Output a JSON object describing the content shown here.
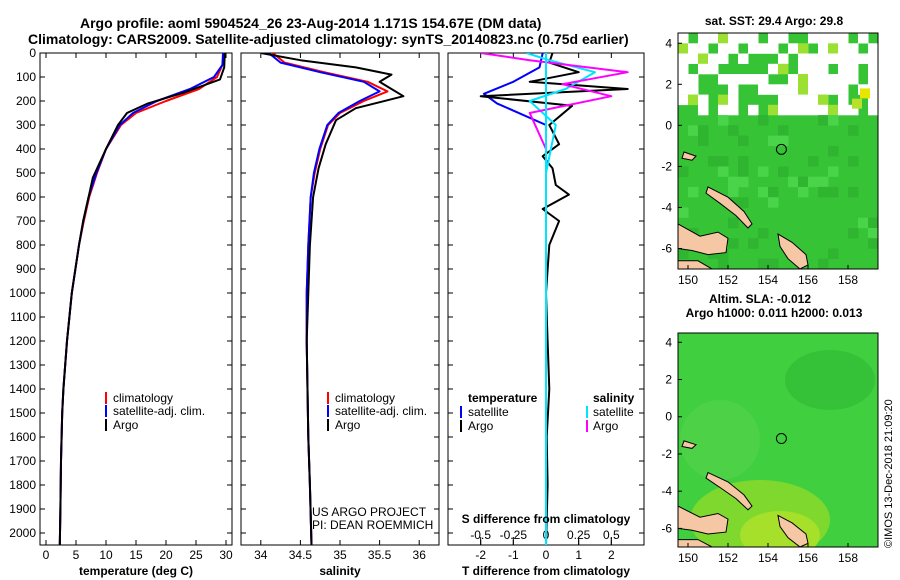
{
  "title_line1": "Argo profile: aoml 5904524_26 23-Aug-2014 1.171S 154.67E (DM data)",
  "title_line2": "Climatology: CARS2009. Satellite-adjusted climatology: synTS_20140823.nc (0.75d earlier)",
  "credit_line1": "US ARGO PROJECT",
  "credit_line2": "PI: DEAN ROEMMICH",
  "watermark": "©IMOS 13-Dec-2018 21:09:20",
  "colors": {
    "climatology": "#ff0000",
    "satellite": "#0000ff",
    "argo": "#000000",
    "sat_salinity": "#00e5ff",
    "argo_salinity": "#ff00ff",
    "land": "#f6c7a4",
    "sst_green": "#35c935"
  },
  "chart_data": [
    {
      "type": "line",
      "id": "temperature",
      "xlabel": "temperature (deg C)",
      "ylabel": "",
      "xlim": [
        -1,
        31
      ],
      "ylim": [
        0,
        2050
      ],
      "y_inverted": true,
      "xticks": [
        0,
        5,
        10,
        15,
        20,
        25,
        30
      ],
      "yticks": [
        0,
        100,
        200,
        300,
        400,
        500,
        600,
        700,
        800,
        900,
        1000,
        1100,
        1200,
        1300,
        1400,
        1500,
        1600,
        1700,
        1800,
        1900,
        2000
      ],
      "legend": [
        "climatology",
        "satellite-adj. clim.",
        "Argo"
      ],
      "legend_position": "bottom-right",
      "series": [
        {
          "name": "climatology",
          "color": "#ff0000",
          "x": [
            29.6,
            29.4,
            28.5,
            25.5,
            20.0,
            15.0,
            12.5,
            10.0,
            8.5,
            7.2,
            6.3,
            5.5,
            4.9,
            4.3,
            3.9,
            3.5,
            3.2,
            2.9,
            2.7,
            2.5,
            2.4,
            2.3
          ],
          "y": [
            0,
            50,
            100,
            150,
            200,
            250,
            300,
            400,
            500,
            600,
            700,
            800,
            900,
            1000,
            1100,
            1200,
            1300,
            1400,
            1500,
            1700,
            1900,
            2050
          ]
        },
        {
          "name": "satellite-adj. clim.",
          "color": "#0000ff",
          "x": [
            29.5,
            29.4,
            28.0,
            24.0,
            18.5,
            14.5,
            12.3,
            10.0,
            8.4,
            7.1,
            6.2,
            5.5,
            4.9,
            4.3,
            3.9,
            3.5,
            3.2,
            2.9,
            2.7,
            2.5,
            2.4,
            2.3
          ],
          "y": [
            0,
            50,
            100,
            150,
            200,
            250,
            300,
            400,
            500,
            600,
            700,
            800,
            900,
            1000,
            1100,
            1200,
            1300,
            1400,
            1500,
            1700,
            1900,
            2050
          ]
        },
        {
          "name": "Argo",
          "color": "#000000",
          "x": [
            29.8,
            29.7,
            29.0,
            23.0,
            17.0,
            13.5,
            12.0,
            10.0,
            7.8,
            7.1,
            6.2,
            5.5,
            4.9,
            4.3,
            3.9,
            3.5,
            3.2,
            2.9,
            2.7,
            2.5,
            2.4,
            2.3
          ],
          "y": [
            0,
            60,
            110,
            165,
            210,
            250,
            300,
            400,
            520,
            600,
            700,
            800,
            900,
            1000,
            1100,
            1200,
            1300,
            1400,
            1500,
            1700,
            1900,
            2050
          ]
        }
      ]
    },
    {
      "type": "line",
      "id": "salinity",
      "xlabel": "salinity",
      "ylabel": "",
      "xlim": [
        33.75,
        36.25
      ],
      "ylim": [
        0,
        2050
      ],
      "y_inverted": true,
      "xticks": [
        34,
        34.5,
        35,
        35.5,
        36
      ],
      "legend": [
        "climatology",
        "satellite-adj. clim.",
        "Argo"
      ],
      "legend_position": "bottom-right",
      "series": [
        {
          "name": "climatology",
          "color": "#ff0000",
          "x": [
            34.15,
            34.3,
            34.8,
            35.35,
            35.6,
            35.3,
            35.0,
            34.85,
            34.75,
            34.68,
            34.63,
            34.6,
            34.58,
            34.58,
            34.59,
            34.6,
            34.62,
            34.64
          ],
          "y": [
            0,
            40,
            80,
            120,
            160,
            200,
            250,
            300,
            400,
            500,
            600,
            800,
            1000,
            1200,
            1400,
            1600,
            1800,
            2050
          ]
        },
        {
          "name": "satellite-adj. clim.",
          "color": "#0000ff",
          "x": [
            34.1,
            34.25,
            34.75,
            35.3,
            35.5,
            35.25,
            34.98,
            34.84,
            34.74,
            34.67,
            34.63,
            34.6,
            34.58,
            34.58,
            34.59,
            34.6,
            34.62,
            34.64
          ],
          "y": [
            0,
            40,
            80,
            120,
            160,
            200,
            250,
            300,
            400,
            500,
            600,
            800,
            1000,
            1200,
            1400,
            1600,
            1800,
            2050
          ]
        },
        {
          "name": "Argo",
          "color": "#000000",
          "x": [
            34.0,
            34.5,
            35.2,
            35.65,
            35.5,
            35.8,
            35.2,
            34.95,
            34.82,
            34.73,
            34.66,
            34.62,
            34.6,
            34.58,
            34.59,
            34.6,
            34.62,
            34.64
          ],
          "y": [
            0,
            30,
            60,
            90,
            120,
            180,
            230,
            280,
            380,
            480,
            600,
            800,
            1000,
            1200,
            1400,
            1600,
            1800,
            2050
          ]
        }
      ]
    },
    {
      "type": "line",
      "id": "difference",
      "xlabel": "T difference from climatology",
      "xlabel_top": "S difference from climatology",
      "ylabel": "",
      "xlim": [
        -3,
        3
      ],
      "ylim": [
        0,
        2050
      ],
      "y_inverted": true,
      "xticks": [
        -2,
        -1,
        0,
        1,
        2
      ],
      "xticks_top_labels": [
        "-0.5",
        "-0.25",
        "0",
        "0.25",
        "0.5"
      ],
      "xticks_top_positions": [
        -2,
        -1,
        0,
        1,
        2
      ],
      "legend_left_title": "temperature",
      "legend_right_title": "salinity",
      "legend_left": [
        "satellite",
        "Argo"
      ],
      "legend_right": [
        "satellite",
        "Argo"
      ],
      "legend_position": "bottom",
      "series": [
        {
          "name": "T satellite",
          "color": "#0000ff",
          "x": [
            -0.1,
            -0.2,
            -1.0,
            -1.9,
            -1.5,
            0.0,
            0.0,
            0.0,
            0.0,
            0.0
          ],
          "y": [
            0,
            60,
            120,
            170,
            210,
            300,
            500,
            1000,
            1500,
            2050
          ]
        },
        {
          "name": "T Argo",
          "color": "#000000",
          "x": [
            0.2,
            0.1,
            1.0,
            -0.5,
            2.5,
            -2.0,
            0.8,
            0.1,
            0.4,
            -0.1,
            0.2,
            0.3,
            0.7,
            -0.1,
            0.4,
            0.1,
            0.0,
            0.05,
            0.1,
            0.02,
            0.05,
            0.0
          ],
          "y": [
            0,
            40,
            80,
            120,
            150,
            180,
            220,
            300,
            380,
            430,
            480,
            550,
            590,
            650,
            700,
            800,
            1000,
            1200,
            1400,
            1600,
            1800,
            2050
          ]
        },
        {
          "name": "S satellite",
          "color": "#00e5ff",
          "x": [
            -0.6,
            0.1,
            1.5,
            0.6,
            -0.5,
            0.3,
            0.0,
            0.0,
            0.0,
            0.0
          ],
          "y": [
            0,
            30,
            80,
            150,
            200,
            300,
            500,
            1000,
            1500,
            2050
          ]
        },
        {
          "name": "S Argo",
          "color": "#ff00ff",
          "x": [
            -2.0,
            -0.5,
            2.5,
            0.5,
            2.0,
            -0.5,
            0.0,
            0.0,
            0.0,
            0.0
          ],
          "y": [
            0,
            30,
            80,
            130,
            180,
            250,
            400,
            1000,
            1500,
            2050
          ]
        }
      ]
    },
    {
      "type": "heatmap",
      "id": "sst_map",
      "title": "sat. SST: 29.4 Argo: 29.8",
      "xlim": [
        149.5,
        159.5
      ],
      "ylim": [
        -7,
        4.5
      ],
      "xticks": [
        150,
        152,
        154,
        156,
        158
      ],
      "yticks": [
        -6,
        -4,
        -2,
        0,
        2,
        4
      ],
      "argo_position": {
        "lon": 154.67,
        "lat": -1.171
      }
    },
    {
      "type": "heatmap",
      "id": "sla_map",
      "title_line1": "Altim. SLA: -0.012",
      "title_line2": "Argo h1000: 0.011 h2000: 0.013",
      "xlim": [
        149.5,
        159.5
      ],
      "ylim": [
        -7,
        4.5
      ],
      "xticks": [
        150,
        152,
        154,
        156,
        158
      ],
      "yticks": [
        -6,
        -4,
        -2,
        0,
        2,
        4
      ],
      "argo_position": {
        "lon": 154.67,
        "lat": -1.171
      }
    }
  ]
}
